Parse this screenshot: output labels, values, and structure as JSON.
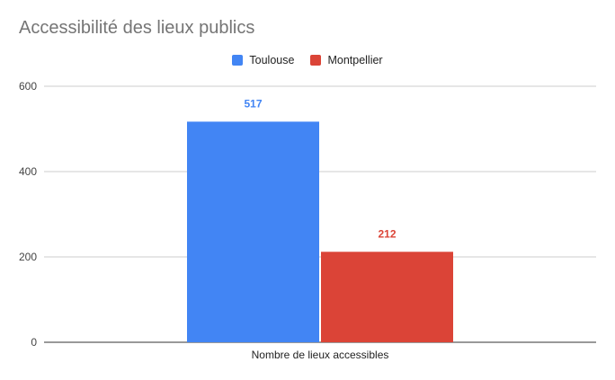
{
  "chart_data": {
    "type": "bar",
    "title": "Accessibilité des lieux publics",
    "categories": [
      "Nombre de lieux accessibles"
    ],
    "series": [
      {
        "name": "Toulouse",
        "values": [
          517
        ],
        "color": "#4285f4"
      },
      {
        "name": "Montpellier",
        "values": [
          212
        ],
        "color": "#db4437"
      }
    ],
    "yticks": [
      "0",
      "200",
      "400",
      "600"
    ],
    "ylim": [
      0,
      600
    ],
    "grid": true,
    "legend_position": "top"
  }
}
